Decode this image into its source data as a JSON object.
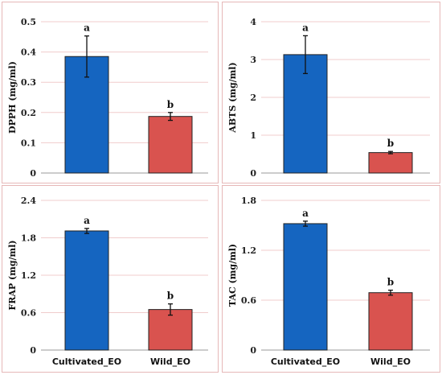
{
  "colors": {
    "cultivated": "#1565c0",
    "wild": "#d9534f",
    "grid": "#f0cccc",
    "axis": "#999999",
    "frame": "#e6b8b8"
  },
  "chart_data": [
    {
      "type": "bar",
      "categories": [
        "",
        ""
      ],
      "values": [
        0.385,
        0.187
      ],
      "errors": [
        0.068,
        0.013
      ],
      "letters": [
        "a",
        "b"
      ],
      "ylabel": "DPPH (mg/ml)",
      "ylim": [
        0,
        0.5
      ],
      "yticks": [
        "0",
        "0.1",
        "0.2",
        "0.3",
        "0.4",
        "0.5"
      ],
      "ytick_values": [
        0,
        0.1,
        0.2,
        0.3,
        0.4,
        0.5
      ],
      "grid": true
    },
    {
      "type": "bar",
      "categories": [
        "",
        ""
      ],
      "values": [
        3.13,
        0.54
      ],
      "errors": [
        0.5,
        0.03
      ],
      "letters": [
        "a",
        "b"
      ],
      "ylabel": "ABTS (mg/ml)",
      "ylim": [
        0,
        4
      ],
      "yticks": [
        "0",
        "1",
        "2",
        "3",
        "4"
      ],
      "ytick_values": [
        0,
        1,
        2,
        3,
        4
      ],
      "grid": true
    },
    {
      "type": "bar",
      "categories": [
        "Cultivated_EO",
        "Wild_EO"
      ],
      "values": [
        1.91,
        0.65
      ],
      "errors": [
        0.04,
        0.09
      ],
      "letters": [
        "a",
        "b"
      ],
      "ylabel": "FRAP (mg/ml)",
      "ylim": [
        0,
        2.4
      ],
      "yticks": [
        "0",
        "0.6",
        "1.2",
        "1.8",
        "2.4"
      ],
      "ytick_values": [
        0,
        0.6,
        1.2,
        1.8,
        2.4
      ],
      "grid": true
    },
    {
      "type": "bar",
      "categories": [
        "Cultivated_EO",
        "Wild_EO"
      ],
      "values": [
        1.52,
        0.69
      ],
      "errors": [
        0.03,
        0.03
      ],
      "letters": [
        "a",
        "b"
      ],
      "ylabel": "TAC (mg/ml)",
      "ylim": [
        0,
        1.8
      ],
      "yticks": [
        "0",
        "0.6",
        "1.2",
        "1.8"
      ],
      "ytick_values": [
        0,
        0.6,
        1.2,
        1.8
      ],
      "grid": true
    }
  ]
}
